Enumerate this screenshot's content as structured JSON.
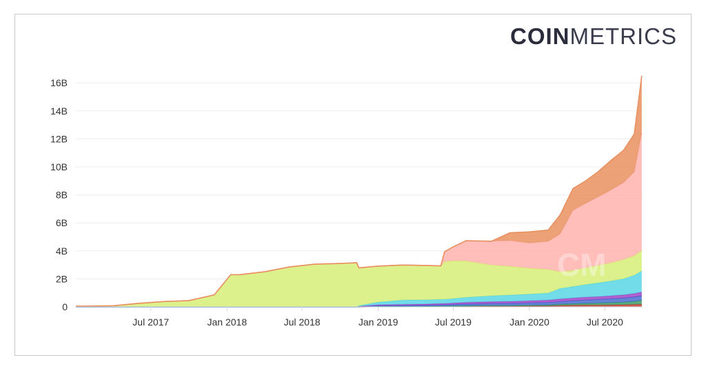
{
  "logo": {
    "bold": "COIN",
    "light": "METRICS"
  },
  "watermark": "CM",
  "chart_data": {
    "type": "area",
    "stacked": true,
    "title": "",
    "xlabel": "",
    "ylabel": "",
    "x_range": [
      "2017-01-01",
      "2020-09-30"
    ],
    "ylim": [
      0,
      16.5
    ],
    "y_unit": "B",
    "y_ticks": [
      0,
      2,
      4,
      6,
      8,
      10,
      12,
      14,
      16
    ],
    "y_tick_labels": [
      "0",
      "2B",
      "4B",
      "6B",
      "8B",
      "10B",
      "12B",
      "14B",
      "16B"
    ],
    "x_ticks": [
      "2017-07-01",
      "2018-01-01",
      "2018-07-01",
      "2019-01-01",
      "2019-07-01",
      "2020-01-01",
      "2020-07-01"
    ],
    "x_tick_labels": [
      "Jul 2017",
      "Jan 2018",
      "Jul 2018",
      "Jan 2019",
      "Jul 2019",
      "Jan 2020",
      "Jul 2020"
    ],
    "grid": true,
    "legend": "none",
    "x": [
      "2017-01-01",
      "2017-04-01",
      "2017-06-01",
      "2017-08-01",
      "2017-10-01",
      "2017-12-01",
      "2018-01-10",
      "2018-02-01",
      "2018-04-01",
      "2018-06-01",
      "2018-08-01",
      "2018-10-01",
      "2018-11-10",
      "2018-11-15",
      "2019-01-01",
      "2019-03-01",
      "2019-05-01",
      "2019-06-01",
      "2019-06-10",
      "2019-07-01",
      "2019-08-01",
      "2019-10-01",
      "2019-11-15",
      "2020-01-01",
      "2020-02-15",
      "2020-03-15",
      "2020-04-15",
      "2020-05-15",
      "2020-06-15",
      "2020-07-15",
      "2020-08-15",
      "2020-09-10",
      "2020-09-28"
    ],
    "series": [
      {
        "color": "#c9433a",
        "values": [
          0,
          0,
          0,
          0,
          0,
          0,
          0,
          0,
          0,
          0,
          0,
          0,
          0,
          0,
          0.02,
          0.02,
          0.03,
          0.03,
          0.03,
          0.04,
          0.04,
          0.05,
          0.05,
          0.06,
          0.07,
          0.1,
          0.12,
          0.13,
          0.13,
          0.14,
          0.15,
          0.17,
          0.18
        ]
      },
      {
        "color": "#3f9e6a",
        "values": [
          0,
          0,
          0,
          0,
          0,
          0,
          0,
          0,
          0,
          0,
          0,
          0,
          0,
          0,
          0.02,
          0.02,
          0.02,
          0.03,
          0.03,
          0.03,
          0.04,
          0.05,
          0.05,
          0.06,
          0.07,
          0.08,
          0.1,
          0.12,
          0.14,
          0.16,
          0.18,
          0.22,
          0.28
        ]
      },
      {
        "color": "#4a6fd0",
        "values": [
          0,
          0,
          0,
          0,
          0,
          0,
          0,
          0,
          0,
          0,
          0,
          0,
          0,
          0.02,
          0.05,
          0.06,
          0.07,
          0.08,
          0.08,
          0.1,
          0.12,
          0.14,
          0.15,
          0.16,
          0.18,
          0.2,
          0.22,
          0.24,
          0.26,
          0.28,
          0.3,
          0.32,
          0.34
        ]
      },
      {
        "color": "#a348c8",
        "values": [
          0,
          0,
          0,
          0,
          0,
          0,
          0,
          0,
          0,
          0,
          0,
          0,
          0,
          0.02,
          0.06,
          0.07,
          0.08,
          0.09,
          0.09,
          0.1,
          0.12,
          0.13,
          0.14,
          0.15,
          0.16,
          0.18,
          0.19,
          0.2,
          0.2,
          0.21,
          0.22,
          0.24,
          0.26
        ]
      },
      {
        "color": "#5bd6e5",
        "values": [
          0,
          0,
          0,
          0,
          0,
          0,
          0,
          0,
          0,
          0,
          0,
          0,
          0,
          0.05,
          0.18,
          0.32,
          0.3,
          0.3,
          0.3,
          0.32,
          0.36,
          0.42,
          0.45,
          0.48,
          0.5,
          0.75,
          0.82,
          0.9,
          0.98,
          1.05,
          1.15,
          1.3,
          1.5
        ]
      },
      {
        "color": "#d6ef78",
        "values": [
          0.05,
          0.08,
          0.25,
          0.38,
          0.45,
          0.85,
          2.3,
          2.3,
          2.5,
          2.85,
          3.05,
          3.1,
          3.15,
          2.7,
          2.58,
          2.5,
          2.45,
          2.4,
          2.7,
          2.7,
          2.6,
          2.2,
          2.05,
          1.85,
          1.7,
          1.2,
          1.15,
          1.2,
          1.25,
          1.3,
          1.38,
          1.4,
          1.45
        ]
      },
      {
        "color": "#ffb3ad",
        "values": [
          0,
          0,
          0,
          0,
          0,
          0,
          0,
          0,
          0,
          0,
          0,
          0,
          0,
          0,
          0,
          0,
          0,
          0,
          0.7,
          1.0,
          1.45,
          1.7,
          1.85,
          1.8,
          2.0,
          2.7,
          4.3,
          4.6,
          4.9,
          5.2,
          5.5,
          6.0,
          8.4
        ]
      },
      {
        "color": "#e9905f",
        "values": [
          0,
          0,
          0,
          0,
          0,
          0,
          0,
          0,
          0,
          0,
          0,
          0,
          0,
          0,
          0,
          0,
          0,
          0,
          0,
          0,
          0,
          0,
          0.55,
          0.8,
          0.8,
          1.35,
          1.55,
          1.6,
          1.8,
          2.1,
          2.3,
          2.7,
          4.1
        ]
      }
    ]
  }
}
